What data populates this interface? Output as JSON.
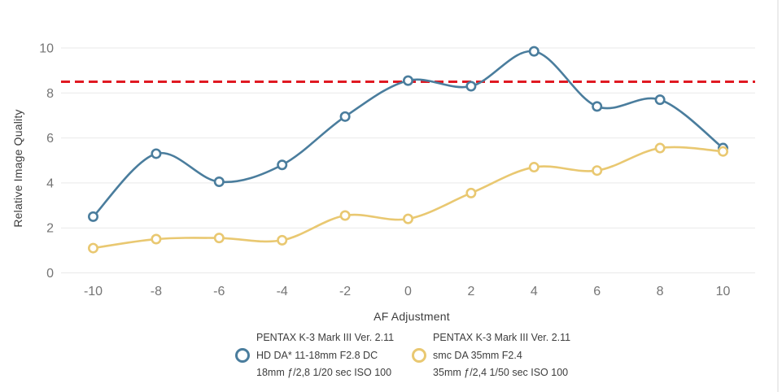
{
  "chart_data": {
    "type": "line",
    "x": [
      -10,
      -8,
      -6,
      -4,
      -2,
      0,
      2,
      4,
      6,
      8,
      10
    ],
    "x_tick_labels": [
      "-10",
      "-8",
      "-6",
      "-4",
      "-2",
      "0",
      "2",
      "4",
      "6",
      "8",
      "10"
    ],
    "y_ticks": [
      0,
      2,
      4,
      6,
      8,
      10
    ],
    "ylim": [
      0,
      10
    ],
    "xlim": [
      -11,
      11
    ],
    "xlabel": "AF Adjustment",
    "ylabel": "Relative Image Quality",
    "grid": "horizontal-only",
    "legend_position": "bottom-center",
    "reference_line": {
      "value": 8.5,
      "style": "dashed",
      "color": "#e01922"
    },
    "series": [
      {
        "name": "HD DA* 11-18mm F2.8 DC",
        "legend_lines": [
          "PENTAX K-3 Mark III Ver. 2.11",
          "HD DA* 11-18mm F2.8 DC",
          "18mm ƒ/2,8 1/20 sec ISO 100"
        ],
        "color": "#4a7d9d",
        "marker": "open-circle",
        "values": [
          2.5,
          5.3,
          4.05,
          4.8,
          6.95,
          8.55,
          8.3,
          9.85,
          7.4,
          7.7,
          5.55
        ]
      },
      {
        "name": "smc DA 35mm F2.4",
        "legend_lines": [
          "PENTAX K-3 Mark III Ver. 2.11",
          "smc DA 35mm F2.4",
          "35mm ƒ/2,4 1/50 sec ISO 100"
        ],
        "color": "#e9c871",
        "marker": "open-circle",
        "values": [
          1.1,
          1.5,
          1.55,
          1.45,
          2.55,
          2.4,
          3.55,
          4.7,
          4.55,
          5.55,
          5.4
        ]
      }
    ]
  },
  "colors": {
    "background": "#ffffff",
    "gridline": "#e9e9e9",
    "tick_text": "#757575",
    "axis_title_text": "#3d3d3d",
    "legend_text": "#3d3d3d"
  }
}
